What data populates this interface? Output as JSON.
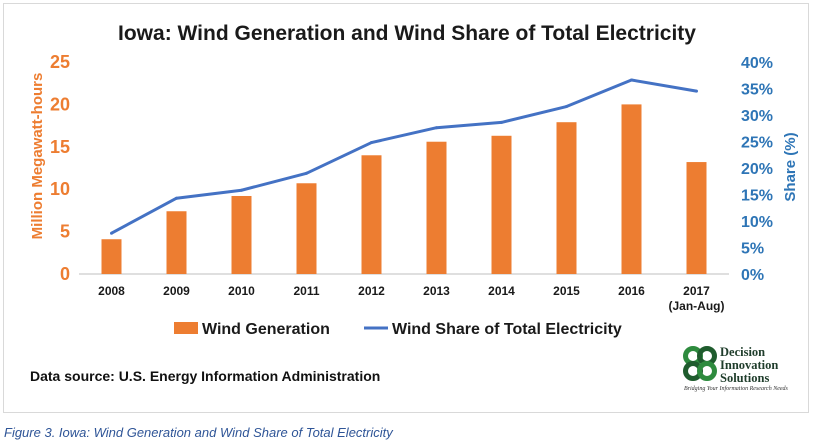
{
  "chart_data": {
    "type": "bar+line",
    "title": "Iowa: Wind Generation and Wind Share of Total Electricity",
    "categories": [
      "2008",
      "2009",
      "2010",
      "2011",
      "2012",
      "2013",
      "2014",
      "2015",
      "2016",
      "2017"
    ],
    "category_sublabels": [
      "",
      "",
      "",
      "",
      "",
      "",
      "",
      "",
      "",
      "(Jan-Aug)"
    ],
    "ylabel_left": "Million Megawatt-hours",
    "ylabel_right": "Share (%)",
    "ylim_left": [
      0,
      25
    ],
    "yticks_left": [
      "0",
      "5",
      "10",
      "15",
      "20",
      "25"
    ],
    "ylim_right": [
      0,
      40
    ],
    "yticks_right": [
      "0%",
      "5%",
      "10%",
      "15%",
      "20%",
      "25%",
      "30%",
      "35%",
      "40%"
    ],
    "series": [
      {
        "name": "Wind Generation",
        "type": "bar",
        "axis": "left",
        "color": "#ed7d31",
        "values": [
          4.1,
          7.4,
          9.2,
          10.7,
          14.0,
          15.6,
          16.3,
          17.9,
          20.0,
          13.2
        ]
      },
      {
        "name": "Wind Share of Total Electricity",
        "type": "line",
        "axis": "right",
        "color": "#4472c4",
        "values": [
          7.7,
          14.3,
          15.8,
          19.0,
          24.8,
          27.6,
          28.6,
          31.6,
          36.6,
          34.5
        ]
      }
    ],
    "legend_position": "bottom",
    "grid": false
  },
  "source_text": "Data source: U.S. Energy Information Administration",
  "logo": {
    "line1": "Decision",
    "line2": "Innovation",
    "line3": "Solutions",
    "tagline": "Bridging Your Information Research Needs"
  },
  "caption": "Figure 3. Iowa: Wind Generation and Wind Share of Total Electricity"
}
